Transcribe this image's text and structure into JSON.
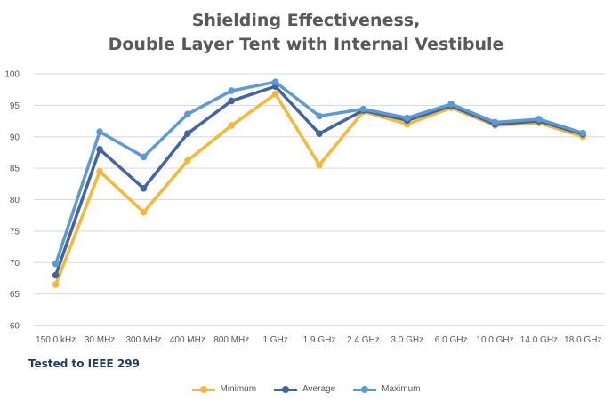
{
  "chart_data": {
    "type": "line",
    "title_line1": "Shielding Effectiveness,",
    "title_line2": "Double Layer Tent with Internal Vestibule",
    "xlabel": "",
    "ylabel": "",
    "categories": [
      "150.0 kHz",
      "30 MHz",
      "300 MHz",
      "400 MHz",
      "800 MHz",
      "1 GHz",
      "1.9 GHz",
      "2.4 GHz",
      "3.0 GHz",
      "6.0 GHz",
      "10.0 GHz",
      "14.0 GHz",
      "18.0 GHz"
    ],
    "ylim": [
      60,
      100
    ],
    "yticks": [
      60,
      65,
      70,
      75,
      80,
      85,
      90,
      95,
      100
    ],
    "grid": "horizontal",
    "legend_position": "bottom",
    "series": [
      {
        "name": "Minimum",
        "color": "#f5b935",
        "values": [
          66.5,
          84.5,
          78.0,
          86.2,
          91.8,
          96.8,
          85.5,
          94.0,
          92.0,
          94.6,
          91.8,
          92.2,
          90.0
        ]
      },
      {
        "name": "Average",
        "color": "#4263a5",
        "values": [
          68.0,
          88.0,
          81.8,
          90.5,
          95.7,
          98.0,
          90.5,
          94.2,
          92.6,
          94.9,
          92.0,
          92.5,
          90.4
        ]
      },
      {
        "name": "Maximum",
        "color": "#5b9bd5",
        "values": [
          69.8,
          90.8,
          86.8,
          93.6,
          97.3,
          98.7,
          93.3,
          94.4,
          93.0,
          95.2,
          92.3,
          92.8,
          90.6
        ]
      }
    ]
  },
  "note": "Tested to IEEE 299"
}
